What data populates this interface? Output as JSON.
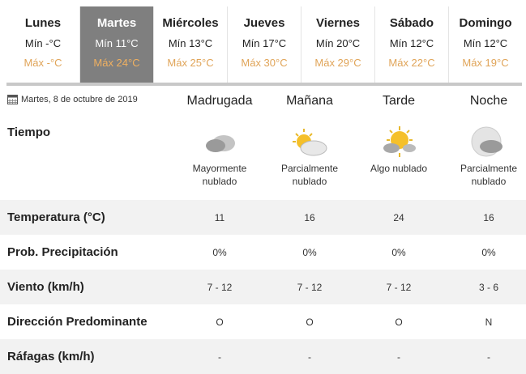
{
  "days": [
    {
      "name": "Lunes",
      "min": "Mín -°C",
      "max": "Máx -°C"
    },
    {
      "name": "Martes",
      "min": "Mín 11°C",
      "max": "Máx 24°C",
      "active": true
    },
    {
      "name": "Miércoles",
      "min": "Mín 13°C",
      "max": "Máx 25°C"
    },
    {
      "name": "Jueves",
      "min": "Mín 17°C",
      "max": "Máx 30°C"
    },
    {
      "name": "Viernes",
      "min": "Mín 20°C",
      "max": "Máx 29°C"
    },
    {
      "name": "Sábado",
      "min": "Mín 12°C",
      "max": "Máx 22°C"
    },
    {
      "name": "Domingo",
      "min": "Mín 12°C",
      "max": "Máx 19°C"
    }
  ],
  "date": "Martes, 8 de octubre de 2019",
  "periods": [
    "Madrugada",
    "Mañana",
    "Tarde",
    "Noche"
  ],
  "tiempo_label": "Tiempo",
  "conditions": [
    {
      "icon": "cloudy-night-icon",
      "l1": "Mayormente",
      "l2": "nublado"
    },
    {
      "icon": "partly-cloudy-icon",
      "l1": "Parcialmente",
      "l2": "nublado"
    },
    {
      "icon": "sun-cloud-icon",
      "l1": "Algo nublado",
      "l2": ""
    },
    {
      "icon": "moon-cloud-icon",
      "l1": "Parcialmente",
      "l2": "nublado"
    }
  ],
  "rows": [
    {
      "label": "Temperatura (°C)",
      "values": [
        "11",
        "16",
        "24",
        "16"
      ]
    },
    {
      "label": "Prob. Precipitación",
      "values": [
        "0%",
        "0%",
        "0%",
        "0%"
      ]
    },
    {
      "label": "Viento (km/h)",
      "values": [
        "7 - 12",
        "7 - 12",
        "7 - 12",
        "3 - 6"
      ]
    },
    {
      "label": "Dirección Predominante",
      "values": [
        "O",
        "O",
        "O",
        "N"
      ]
    },
    {
      "label": "Ráfagas (km/h)",
      "values": [
        "-",
        "-",
        "-",
        "-"
      ]
    }
  ],
  "colors": {
    "active_tab": "#7f7f7f",
    "max_temp": "#e0a458",
    "row_alt": "#f2f2f2"
  }
}
